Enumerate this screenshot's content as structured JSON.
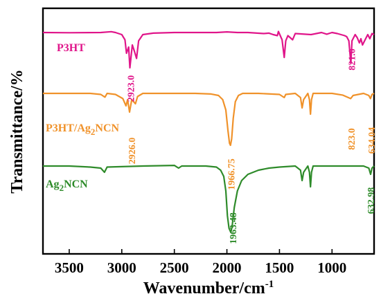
{
  "chart_data": {
    "type": "line",
    "xlabel_base": "Wavenumber/cm",
    "xlabel_sup": "-1",
    "ylabel": "Transmittance/%",
    "xlim": [
      3750,
      600
    ],
    "x_reversed": true,
    "x_ticks": [
      3500,
      3000,
      2500,
      2000,
      1500,
      1000
    ],
    "grid": false,
    "series": [
      {
        "name": "P3HT",
        "label_parts": [
          {
            "t": "P3HT"
          }
        ],
        "color": "#e0158a",
        "offset": 0,
        "points": [
          [
            3750,
            0.0
          ],
          [
            3500,
            -0.1
          ],
          [
            3200,
            0.0
          ],
          [
            3100,
            0.4
          ],
          [
            3060,
            0.0
          ],
          [
            3000,
            -1.0
          ],
          [
            2970,
            -3.5
          ],
          [
            2955,
            -10.0
          ],
          [
            2935,
            -7.0
          ],
          [
            2923,
            -17.0
          ],
          [
            2900,
            -6.0
          ],
          [
            2880,
            -9.0
          ],
          [
            2860,
            -12.5
          ],
          [
            2840,
            -4.0
          ],
          [
            2800,
            -1.0
          ],
          [
            2700,
            -0.3
          ],
          [
            2500,
            0.0
          ],
          [
            2300,
            0.0
          ],
          [
            2100,
            0.0
          ],
          [
            2000,
            0.3
          ],
          [
            1900,
            0.0
          ],
          [
            1800,
            0.0
          ],
          [
            1650,
            -0.5
          ],
          [
            1600,
            -0.3
          ],
          [
            1560,
            -1.0
          ],
          [
            1520,
            -1.5
          ],
          [
            1510,
            0.5
          ],
          [
            1475,
            -3.5
          ],
          [
            1455,
            -12.0
          ],
          [
            1440,
            -4.0
          ],
          [
            1420,
            -1.5
          ],
          [
            1375,
            -3.5
          ],
          [
            1350,
            -0.5
          ],
          [
            1200,
            -1.0
          ],
          [
            1100,
            0.0
          ],
          [
            1050,
            -0.8
          ],
          [
            1000,
            0.0
          ],
          [
            950,
            -0.5
          ],
          [
            880,
            -1.5
          ],
          [
            860,
            -2.0
          ],
          [
            840,
            -4.0
          ],
          [
            821,
            -15.0
          ],
          [
            810,
            -4.0
          ],
          [
            780,
            -1.0
          ],
          [
            760,
            -2.5
          ],
          [
            740,
            -5.0
          ],
          [
            725,
            -3.0
          ],
          [
            710,
            -6.0
          ],
          [
            690,
            -4.0
          ],
          [
            660,
            -1.0
          ],
          [
            640,
            -3.0
          ],
          [
            620,
            -0.5
          ],
          [
            600,
            -1.0
          ]
        ],
        "annotations": [
          {
            "text": "2923.0",
            "x": 2923
          },
          {
            "text": "821.0",
            "x": 821
          }
        ]
      },
      {
        "name": "P3HT/Ag2NCN",
        "label_parts": [
          {
            "t": "P3HT/Ag"
          },
          {
            "t": "2",
            "sub": true
          },
          {
            "t": "NCN"
          }
        ],
        "color": "#f0922a",
        "offset": -47,
        "points": [
          [
            3750,
            0.0
          ],
          [
            3500,
            0.0
          ],
          [
            3300,
            0.0
          ],
          [
            3200,
            -0.5
          ],
          [
            3160,
            -1.8
          ],
          [
            3140,
            0.0
          ],
          [
            3060,
            -0.5
          ],
          [
            2990,
            -2.5
          ],
          [
            2960,
            -6.0
          ],
          [
            2945,
            -3.0
          ],
          [
            2926,
            -9.0
          ],
          [
            2905,
            -3.0
          ],
          [
            2870,
            -5.0
          ],
          [
            2850,
            -1.5
          ],
          [
            2800,
            0.0
          ],
          [
            2500,
            0.0
          ],
          [
            2300,
            0.0
          ],
          [
            2150,
            -0.3
          ],
          [
            2080,
            -1.0
          ],
          [
            2040,
            -3.0
          ],
          [
            2010,
            -8.0
          ],
          [
            1990,
            -18.0
          ],
          [
            1975,
            -24.0
          ],
          [
            1966,
            -25.0
          ],
          [
            1955,
            -22.0
          ],
          [
            1940,
            -12.0
          ],
          [
            1920,
            -4.0
          ],
          [
            1890,
            -1.0
          ],
          [
            1850,
            0.0
          ],
          [
            1700,
            0.0
          ],
          [
            1500,
            -0.5
          ],
          [
            1455,
            -2.0
          ],
          [
            1440,
            -0.5
          ],
          [
            1350,
            0.0
          ],
          [
            1300,
            -2.0
          ],
          [
            1285,
            -7.0
          ],
          [
            1270,
            -3.0
          ],
          [
            1230,
            0.0
          ],
          [
            1215,
            -3.0
          ],
          [
            1205,
            -10.0
          ],
          [
            1195,
            -3.0
          ],
          [
            1180,
            0.0
          ],
          [
            1000,
            0.0
          ],
          [
            900,
            -0.8
          ],
          [
            823,
            -2.5
          ],
          [
            800,
            -1.0
          ],
          [
            700,
            0.0
          ],
          [
            650,
            -1.0
          ],
          [
            634,
            -2.5
          ],
          [
            620,
            -0.5
          ],
          [
            600,
            0.0
          ]
        ],
        "annotations": [
          {
            "text": "2926.0",
            "x": 2926
          },
          {
            "text": "1966.75",
            "x": 1966.75
          },
          {
            "text": "823.0",
            "x": 823
          },
          {
            "text": "634.04",
            "x": 634
          }
        ]
      },
      {
        "name": "Ag2NCN",
        "label_parts": [
          {
            "t": "Ag"
          },
          {
            "t": "2",
            "sub": true
          },
          {
            "t": "NCN"
          }
        ],
        "color": "#2e8b2a",
        "offset": -105,
        "points": [
          [
            3750,
            0.0
          ],
          [
            3500,
            0.0
          ],
          [
            3300,
            -0.5
          ],
          [
            3200,
            -1.0
          ],
          [
            3165,
            -3.0
          ],
          [
            3140,
            -0.5
          ],
          [
            3000,
            -0.3
          ],
          [
            2800,
            0.0
          ],
          [
            2500,
            0.3
          ],
          [
            2460,
            -1.0
          ],
          [
            2430,
            0.0
          ],
          [
            2200,
            0.0
          ],
          [
            2100,
            -0.5
          ],
          [
            2060,
            -2.0
          ],
          [
            2030,
            -5.0
          ],
          [
            2010,
            -12.0
          ],
          [
            1995,
            -24.0
          ],
          [
            1980,
            -30.0
          ],
          [
            1963,
            -32.0
          ],
          [
            1950,
            -29.0
          ],
          [
            1930,
            -20.0
          ],
          [
            1900,
            -12.0
          ],
          [
            1860,
            -7.0
          ],
          [
            1800,
            -4.0
          ],
          [
            1700,
            -2.0
          ],
          [
            1600,
            -1.0
          ],
          [
            1500,
            -0.5
          ],
          [
            1350,
            0.0
          ],
          [
            1300,
            -2.0
          ],
          [
            1285,
            -7.0
          ],
          [
            1270,
            -3.0
          ],
          [
            1230,
            0.0
          ],
          [
            1215,
            -3.0
          ],
          [
            1205,
            -10.0
          ],
          [
            1195,
            -3.0
          ],
          [
            1180,
            0.0
          ],
          [
            1000,
            0.0
          ],
          [
            800,
            0.0
          ],
          [
            700,
            0.0
          ],
          [
            650,
            -1.0
          ],
          [
            633,
            -4.0
          ],
          [
            620,
            -1.0
          ],
          [
            600,
            0.0
          ]
        ],
        "annotations": [
          {
            "text": "1963.48",
            "x": 1963.48
          },
          {
            "text": "632.98",
            "x": 633
          }
        ]
      }
    ]
  }
}
